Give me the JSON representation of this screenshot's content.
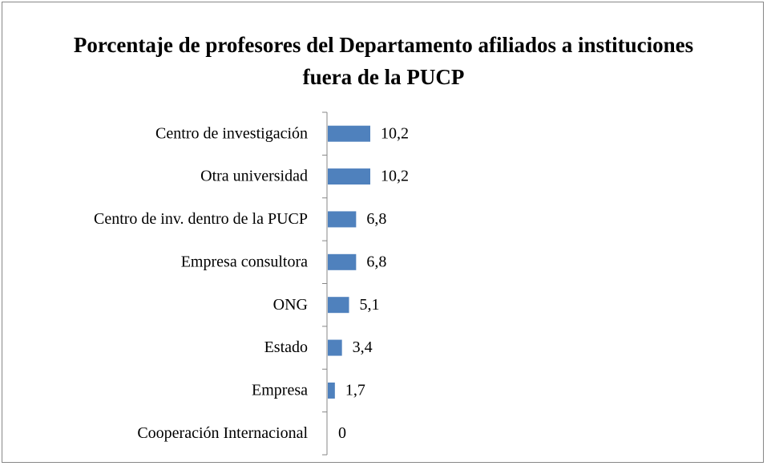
{
  "chart_data": {
    "type": "bar",
    "orientation": "horizontal",
    "title": "Porcentaje de profesores del Departamento afiliados a instituciones fuera de la PUCP",
    "categories": [
      "Centro de investigación",
      "Otra universidad",
      "Centro de inv. dentro de la PUCP",
      "Empresa consultora",
      "ONG",
      "Estado",
      "Empresa",
      "Cooperación Internacional"
    ],
    "values": [
      10.2,
      10.2,
      6.8,
      6.8,
      5.1,
      3.4,
      1.7,
      0
    ],
    "value_labels": [
      "10,2",
      "10,2",
      "6,8",
      "6,8",
      "5,1",
      "3,4",
      "1,7",
      "0"
    ],
    "color": "#4f81bd"
  }
}
